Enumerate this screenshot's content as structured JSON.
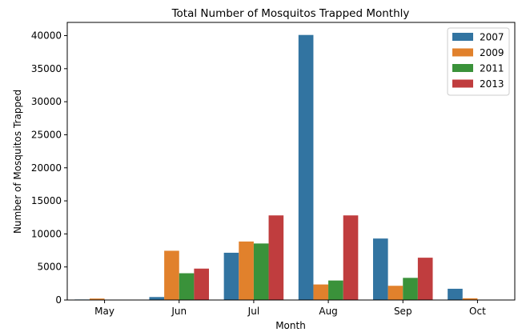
{
  "chart_data": {
    "type": "bar",
    "title": "Total Number of Mosquitos Trapped Monthly",
    "xlabel": "Month",
    "ylabel": "Number of Mosquitos Trapped",
    "categories": [
      "May",
      "Jun",
      "Jul",
      "Aug",
      "Sep",
      "Oct"
    ],
    "ylim": [
      0,
      42000
    ],
    "yticks": [
      0,
      5000,
      10000,
      15000,
      20000,
      25000,
      30000,
      35000,
      40000
    ],
    "grid": false,
    "legend_position": "top-right",
    "series": [
      {
        "name": "2007",
        "color": "#3274a1",
        "values": [
          80,
          450,
          7150,
          40100,
          9300,
          1700
        ]
      },
      {
        "name": "2009",
        "color": "#e1812c",
        "values": [
          220,
          7450,
          8850,
          2350,
          2150,
          260
        ]
      },
      {
        "name": "2011",
        "color": "#3a923a",
        "values": [
          30,
          4050,
          8550,
          2950,
          3350,
          0
        ]
      },
      {
        "name": "2013",
        "color": "#c03d3e",
        "values": [
          20,
          4750,
          12800,
          12800,
          6400,
          20
        ]
      }
    ]
  }
}
